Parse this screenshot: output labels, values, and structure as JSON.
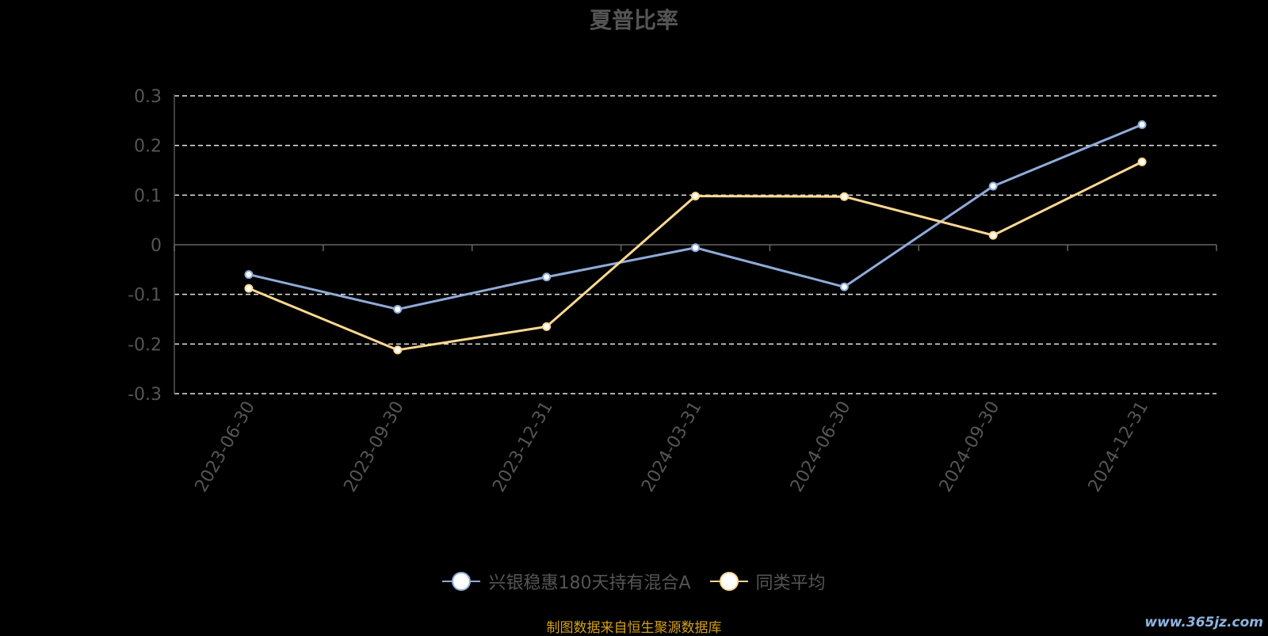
{
  "chart_data": {
    "type": "line",
    "title": "夏普比率",
    "categories": [
      "2023-06-30",
      "2023-09-30",
      "2023-12-31",
      "2024-03-31",
      "2024-06-30",
      "2024-09-30",
      "2024-12-31"
    ],
    "ylim": [
      -0.3,
      0.3
    ],
    "yticks": [
      "0.3",
      "0.2",
      "0.1",
      "0",
      "-0.1",
      "-0.2",
      "-0.3"
    ],
    "grid": true,
    "legend_position": "bottom",
    "series": [
      {
        "name": "兴银稳惠180天持有混合A",
        "color": "#8fabd9",
        "values": [
          -0.06,
          -0.13,
          -0.065,
          -0.006,
          -0.085,
          0.118,
          0.242
        ]
      },
      {
        "name": "同类平均",
        "color": "#fcd891",
        "values": [
          -0.088,
          -0.212,
          -0.165,
          0.098,
          0.097,
          0.019,
          0.167
        ]
      }
    ]
  },
  "source_text": "制图数据来自恒生聚源数据库",
  "watermark": "www.365jz.com"
}
